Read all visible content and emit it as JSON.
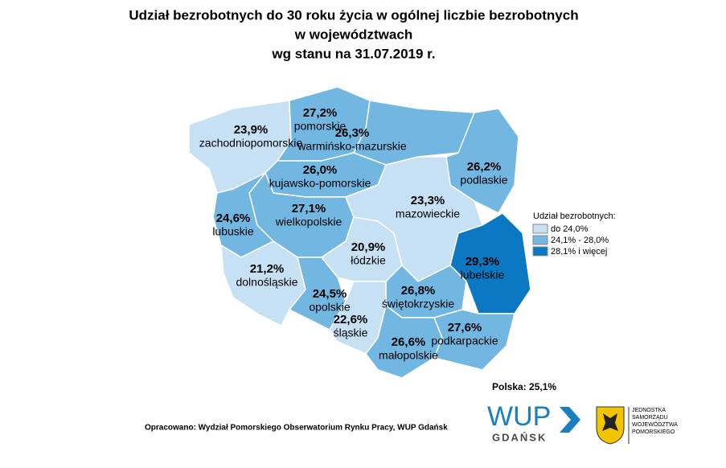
{
  "title": [
    "Udział bezrobotnych do 30 roku życia w ogólnej liczbie bezrobotnych",
    "w województwach",
    "wg stanu na 31.07.2019 r."
  ],
  "regions": [
    {
      "name": "zachodniopomorskie",
      "value": 23.9,
      "value_label": "23,9%",
      "color": "#c6e0f4"
    },
    {
      "name": "pomorskie",
      "value": 27.2,
      "value_label": "27,2%",
      "color": "#72b6e2"
    },
    {
      "name": "warmińsko-mazurskie",
      "value": 26.3,
      "value_label": "26,3%",
      "color": "#72b6e2"
    },
    {
      "name": "podlaskie",
      "value": 26.2,
      "value_label": "26,2%",
      "color": "#72b6e2"
    },
    {
      "name": "kujawsko-pomorskie",
      "value": 26.0,
      "value_label": "26,0%",
      "color": "#72b6e2"
    },
    {
      "name": "wielkopolskie",
      "value": 27.1,
      "value_label": "27,1%",
      "color": "#72b6e2"
    },
    {
      "name": "lubuskie",
      "value": 24.6,
      "value_label": "24,6%",
      "color": "#72b6e2"
    },
    {
      "name": "dolnośląskie",
      "value": 21.2,
      "value_label": "21,2%",
      "color": "#c6e0f4"
    },
    {
      "name": "opolskie",
      "value": 24.5,
      "value_label": "24,5%",
      "color": "#72b6e2"
    },
    {
      "name": "łódzkie",
      "value": 20.9,
      "value_label": "20,9%",
      "color": "#c6e0f4"
    },
    {
      "name": "mazowieckie",
      "value": 23.3,
      "value_label": "23,3%",
      "color": "#c6e0f4"
    },
    {
      "name": "lubelskie",
      "value": 29.3,
      "value_label": "29,3%",
      "color": "#0a78c2"
    },
    {
      "name": "świętokrzyskie",
      "value": 26.8,
      "value_label": "26,8%",
      "color": "#72b6e2"
    },
    {
      "name": "śląskie",
      "value": 22.6,
      "value_label": "22,6%",
      "color": "#c6e0f4"
    },
    {
      "name": "małopolskie",
      "value": 26.6,
      "value_label": "26,6%",
      "color": "#72b6e2"
    },
    {
      "name": "podkarpackie",
      "value": 27.6,
      "value_label": "27,6%",
      "color": "#72b6e2"
    }
  ],
  "legend": {
    "title": "Udział bezrobotnych:",
    "items": [
      {
        "label": "do 24,0%",
        "color": "#c6e0f4"
      },
      {
        "label": "24,1% - 28,0%",
        "color": "#72b6e2"
      },
      {
        "label": "28,1% i więcej",
        "color": "#0a78c2"
      }
    ]
  },
  "poland": {
    "label": "Polska:",
    "value": 25.1,
    "value_label": "25,1%"
  },
  "source": "Opracowano: Wydział Pomorskiego Obserwatorium Rynku Pracy, WUP Gdańsk",
  "logo_wup": {
    "name": "WUP",
    "city": "GDAŃSK"
  },
  "logo_region": [
    "JEDNOSTKA",
    "SAMORZĄDU",
    "WOJEWÓDZTWA",
    "POMORSKIEGO"
  ]
}
